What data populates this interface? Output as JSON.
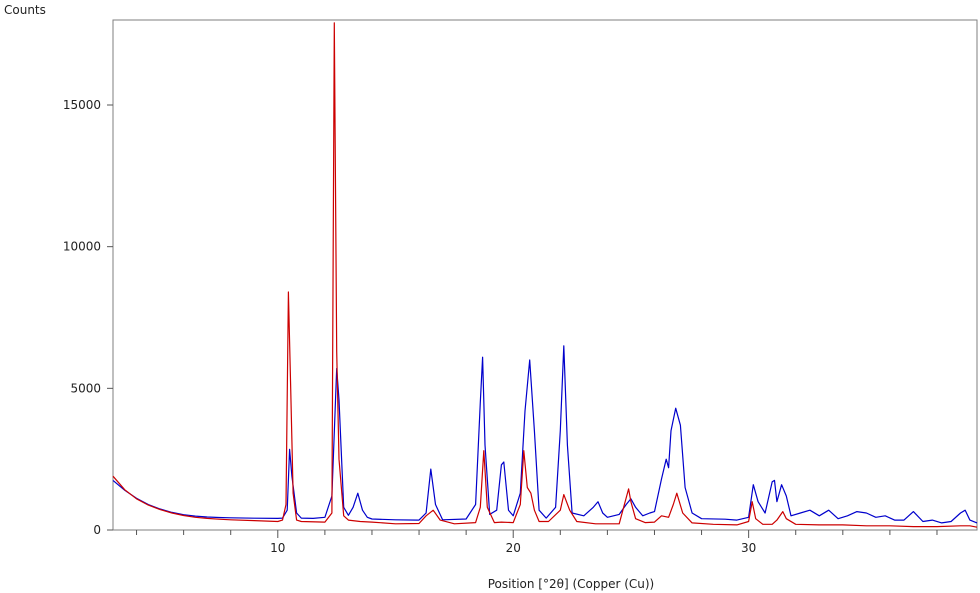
{
  "chart_data": {
    "type": "line",
    "title": "",
    "xlabel": "Position [°2θ] (Copper (Cu))",
    "ylabel": "Counts",
    "xlim": [
      3,
      39.7
    ],
    "ylim": [
      0,
      18000
    ],
    "x_major_ticks": [
      10,
      20,
      30
    ],
    "x_tick_labels": [
      "10",
      "20",
      "30"
    ],
    "y_major_ticks": [
      0,
      5000,
      10000,
      15000
    ],
    "y_tick_labels": [
      "0",
      "5000",
      "10000",
      "15000"
    ],
    "grid": false,
    "legend": "none",
    "series": [
      {
        "color": "#0000cc",
        "x": [
          3.0,
          3.5,
          4.0,
          4.5,
          5.0,
          5.5,
          6.0,
          6.5,
          7.0,
          7.5,
          8.0,
          9.0,
          10.0,
          10.2,
          10.4,
          10.5,
          10.6,
          10.8,
          11.0,
          11.5,
          12.0,
          12.3,
          12.5,
          12.6,
          12.8,
          13.0,
          13.2,
          13.4,
          13.6,
          13.8,
          14.0,
          15.0,
          16.0,
          16.3,
          16.5,
          16.7,
          17.0,
          18.0,
          18.4,
          18.6,
          18.7,
          18.8,
          19.0,
          19.3,
          19.5,
          19.6,
          19.8,
          20.0,
          20.3,
          20.5,
          20.7,
          20.9,
          21.1,
          21.4,
          21.8,
          22.0,
          22.15,
          22.3,
          22.5,
          23.0,
          23.4,
          23.6,
          23.8,
          24.0,
          24.5,
          24.8,
          25.0,
          25.2,
          25.5,
          25.8,
          26.0,
          26.3,
          26.5,
          26.6,
          26.7,
          26.9,
          27.1,
          27.3,
          27.6,
          28.0,
          29.0,
          29.5,
          30.0,
          30.2,
          30.4,
          30.7,
          31.0,
          31.1,
          31.2,
          31.4,
          31.6,
          31.8,
          32.2,
          32.6,
          33.0,
          33.4,
          33.8,
          34.2,
          34.6,
          35.0,
          35.4,
          35.8,
          36.2,
          36.6,
          37.0,
          37.4,
          37.8,
          38.2,
          38.6,
          39.0,
          39.2,
          39.4,
          39.7
        ],
        "y": [
          1750,
          1400,
          1120,
          900,
          740,
          620,
          540,
          490,
          460,
          440,
          430,
          415,
          410,
          420,
          700,
          2850,
          1900,
          600,
          420,
          410,
          450,
          1200,
          5700,
          4600,
          800,
          520,
          800,
          1300,
          700,
          450,
          390,
          360,
          350,
          600,
          2150,
          900,
          360,
          390,
          900,
          4500,
          6100,
          3000,
          550,
          700,
          2300,
          2400,
          700,
          500,
          1300,
          4200,
          6000,
          3500,
          700,
          420,
          800,
          3500,
          6500,
          3000,
          600,
          500,
          800,
          1000,
          600,
          450,
          550,
          900,
          1100,
          800,
          500,
          600,
          650,
          1800,
          2500,
          2200,
          3500,
          4300,
          3700,
          1500,
          600,
          400,
          380,
          350,
          450,
          1600,
          1000,
          600,
          1700,
          1750,
          1000,
          1600,
          1200,
          500,
          600,
          700,
          500,
          700,
          400,
          500,
          650,
          600,
          450,
          500,
          350,
          350,
          650,
          300,
          350,
          250,
          300,
          600,
          700,
          350,
          250
        ]
      },
      {
        "color": "#cc0000",
        "x": [
          3.0,
          3.5,
          4.0,
          4.5,
          5.0,
          5.5,
          6.0,
          6.5,
          7.0,
          7.5,
          8.0,
          9.0,
          10.0,
          10.2,
          10.35,
          10.45,
          10.55,
          10.65,
          10.8,
          11.0,
          12.0,
          12.3,
          12.4,
          12.5,
          12.6,
          12.8,
          13.0,
          13.5,
          14.0,
          15.0,
          16.0,
          16.3,
          16.6,
          16.9,
          17.5,
          18.4,
          18.6,
          18.75,
          18.9,
          19.2,
          19.5,
          20.0,
          20.3,
          20.45,
          20.6,
          20.75,
          20.9,
          21.1,
          21.5,
          22.0,
          22.15,
          22.4,
          22.7,
          23.5,
          24.5,
          24.9,
          25.0,
          25.2,
          25.6,
          26.0,
          26.3,
          26.6,
          26.8,
          26.95,
          27.2,
          27.6,
          28.5,
          29.5,
          30.0,
          30.15,
          30.3,
          30.6,
          31.0,
          31.2,
          31.45,
          31.6,
          32.0,
          33.0,
          34.0,
          35.0,
          36.0,
          37.0,
          38.0,
          39.0,
          39.4,
          39.7
        ],
        "y": [
          1900,
          1420,
          1100,
          880,
          720,
          600,
          510,
          450,
          410,
          380,
          360,
          330,
          300,
          350,
          900,
          8400,
          5000,
          1300,
          350,
          300,
          280,
          600,
          17900,
          6300,
          2500,
          500,
          350,
          300,
          280,
          220,
          230,
          500,
          700,
          350,
          220,
          260,
          800,
          2800,
          800,
          260,
          280,
          260,
          900,
          2800,
          1500,
          1300,
          700,
          300,
          300,
          700,
          1250,
          700,
          300,
          220,
          220,
          1450,
          1000,
          400,
          260,
          280,
          500,
          450,
          900,
          1300,
          600,
          250,
          200,
          180,
          300,
          1000,
          400,
          200,
          200,
          350,
          650,
          400,
          200,
          180,
          180,
          150,
          150,
          120,
          120,
          150,
          150,
          100
        ]
      }
    ]
  }
}
